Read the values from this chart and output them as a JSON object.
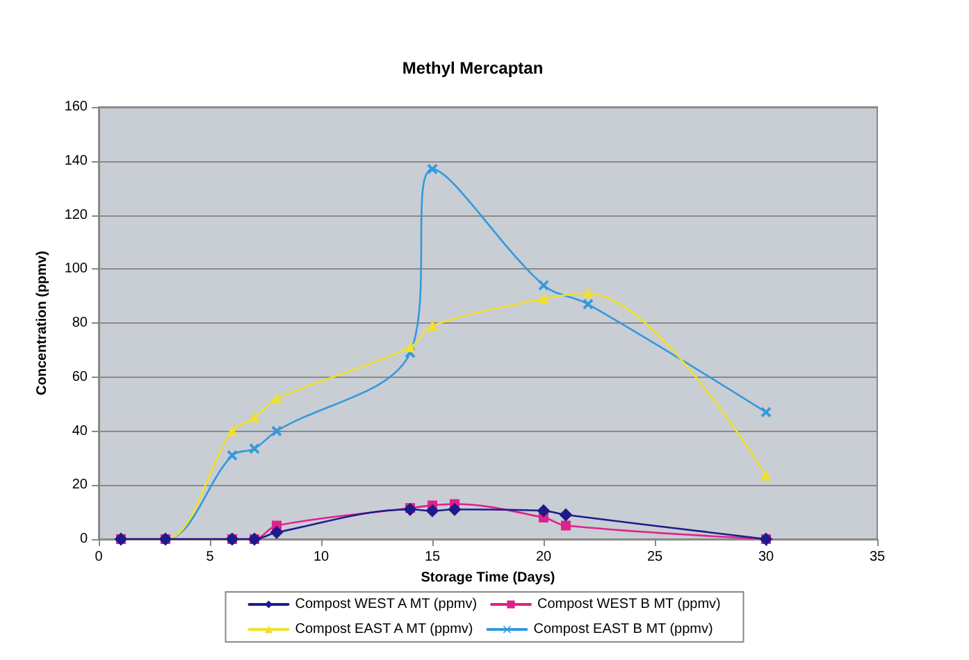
{
  "chart_data": {
    "type": "line",
    "title": "Methyl Mercaptan",
    "xlabel": "Storage Time (Days)",
    "ylabel": "Concentration (ppmv)",
    "xlim": [
      0,
      35
    ],
    "xticks": [
      0,
      5,
      10,
      15,
      20,
      25,
      30,
      35
    ],
    "ylim": [
      0,
      160
    ],
    "yticks": [
      0,
      20,
      40,
      60,
      80,
      100,
      120,
      140,
      160
    ],
    "grid": "y",
    "legend": "bottom",
    "line_style": "solid",
    "series": [
      {
        "name": "Compost WEST A MT (ppmv)",
        "color": "#1c1c8c",
        "marker": "diamond",
        "x": [
          1,
          3,
          6,
          7,
          8,
          14,
          15,
          16,
          20,
          21,
          30
        ],
        "values": [
          0,
          0,
          0,
          0,
          2.5,
          11,
          10.5,
          11,
          10.5,
          9,
          0
        ]
      },
      {
        "name": "Compost WEST B MT (ppmv)",
        "color": "#e0208c",
        "marker": "square",
        "x": [
          1,
          3,
          6,
          7,
          8,
          14,
          15,
          16,
          20,
          21,
          30
        ],
        "values": [
          0,
          0,
          0,
          0,
          5,
          11.5,
          12.5,
          13,
          8,
          5,
          0
        ]
      },
      {
        "name": "Compost EAST A MT (ppmv)",
        "color": "#f0e030",
        "marker": "triangle",
        "x": [
          1,
          3,
          6,
          7,
          8,
          14,
          15,
          20,
          22,
          30
        ],
        "values": [
          0,
          0,
          40,
          45,
          52,
          71,
          79,
          89,
          91,
          23.5
        ]
      },
      {
        "name": "Compost EAST B MT (ppmv)",
        "color": "#3399dd",
        "marker": "cross",
        "x": [
          1,
          3,
          6,
          7,
          8,
          14,
          15,
          20,
          22,
          30
        ],
        "values": [
          0,
          0,
          31,
          33.5,
          40,
          69,
          137,
          94,
          87,
          47
        ]
      }
    ]
  }
}
